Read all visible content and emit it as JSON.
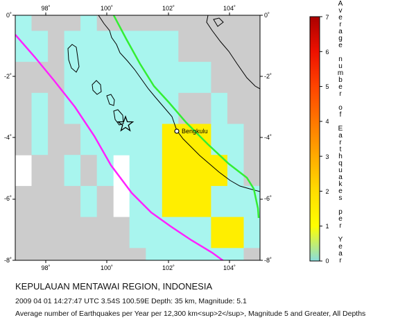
{
  "map": {
    "lon_ticks": [
      "98˚",
      "100˚",
      "102˚",
      "104˚"
    ],
    "lat_ticks": [
      "0˚",
      "-2˚",
      "-4˚",
      "-6˚",
      "-8˚"
    ],
    "city_label": "Bengkulu",
    "colors": {
      "gray_cell": "#cccccc",
      "cyan_cell": "#a8f5ee",
      "yellow_cell": "#ffee00",
      "trench_line": "#ff22ff",
      "fault_line": "#33ee33",
      "coast_line": "#000000"
    }
  },
  "legend": {
    "tick_labels": [
      "0",
      "1",
      "2",
      "3",
      "4",
      "5",
      "6",
      "7"
    ],
    "axis_title": "Average number of Earthquakes per Year",
    "gradient": [
      "#88dddd",
      "#ffff00",
      "#ffdd00",
      "#ffaa00",
      "#ff7700",
      "#ff4400",
      "#ee1100",
      "#aa0000"
    ]
  },
  "caption": {
    "title": "KEPULAUAN MENTAWAI REGION, INDONESIA",
    "event": "2009 04 01 14:27:47 UTC 3.54S 100.59E Depth: 35 km, Magnitude: 5.1",
    "description": "Average number of Earthquakes per Year per 12,300 km<sup>2</sup>, Magnitude 5 and Greater, All Depths"
  }
}
